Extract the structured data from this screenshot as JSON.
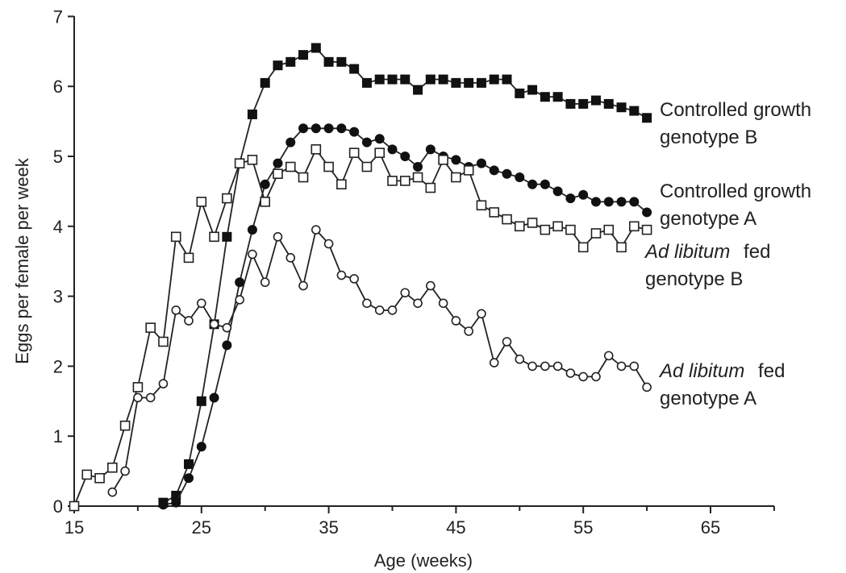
{
  "chart_data": {
    "type": "line",
    "title": "",
    "xlabel": "Age (weeks)",
    "ylabel": "Eggs per female per week",
    "xlim": [
      15,
      70
    ],
    "ylim": [
      0,
      7
    ],
    "xticks": [
      15,
      25,
      35,
      45,
      55,
      65
    ],
    "yticks": [
      0,
      1,
      2,
      3,
      4,
      5,
      6,
      7
    ],
    "grid": false,
    "legend": "none",
    "series": [
      {
        "name": "Controlled growth genotype B",
        "marker": "filled-square",
        "x": [
          22,
          23,
          24,
          25,
          26,
          27,
          28,
          29,
          30,
          31,
          32,
          33,
          34,
          35,
          36,
          37,
          38,
          39,
          40,
          41,
          42,
          43,
          44,
          45,
          46,
          47,
          48,
          49,
          50,
          51,
          52,
          53,
          54,
          55,
          56,
          57,
          58,
          59,
          60
        ],
        "y": [
          0.05,
          0.15,
          0.6,
          1.5,
          2.6,
          3.85,
          4.9,
          5.6,
          6.05,
          6.3,
          6.35,
          6.45,
          6.55,
          6.35,
          6.35,
          6.25,
          6.05,
          6.1,
          6.1,
          6.1,
          5.95,
          6.1,
          6.1,
          6.05,
          6.05,
          6.05,
          6.1,
          6.1,
          5.9,
          5.95,
          5.85,
          5.85,
          5.75,
          5.75,
          5.8,
          5.75,
          5.7,
          5.65,
          5.55
        ]
      },
      {
        "name": "Controlled growth genotype A",
        "marker": "filled-circle",
        "x": [
          22,
          23,
          24,
          25,
          26,
          27,
          28,
          29,
          30,
          31,
          32,
          33,
          34,
          35,
          36,
          37,
          38,
          39,
          40,
          41,
          42,
          43,
          44,
          45,
          46,
          47,
          48,
          49,
          50,
          51,
          52,
          53,
          54,
          55,
          56,
          57,
          58,
          59,
          60
        ],
        "y": [
          0.02,
          0.05,
          0.4,
          0.85,
          1.55,
          2.3,
          3.2,
          3.95,
          4.6,
          4.9,
          5.2,
          5.4,
          5.4,
          5.4,
          5.4,
          5.35,
          5.2,
          5.25,
          5.1,
          5.0,
          4.85,
          5.1,
          5.0,
          4.95,
          4.85,
          4.9,
          4.8,
          4.75,
          4.7,
          4.6,
          4.6,
          4.5,
          4.4,
          4.45,
          4.35,
          4.35,
          4.35,
          4.35,
          4.2
        ]
      },
      {
        "name": "Ad libitum fed genotype B",
        "marker": "open-square",
        "x": [
          15,
          16,
          17,
          18,
          19,
          20,
          21,
          22,
          23,
          24,
          25,
          26,
          27,
          28,
          29,
          30,
          31,
          32,
          33,
          34,
          35,
          36,
          37,
          38,
          39,
          40,
          41,
          42,
          43,
          44,
          45,
          46,
          47,
          48,
          49,
          50,
          51,
          52,
          53,
          54,
          55,
          56,
          57,
          58,
          59,
          60
        ],
        "y": [
          0.0,
          0.45,
          0.4,
          0.55,
          1.15,
          1.7,
          2.55,
          2.35,
          3.85,
          3.55,
          4.35,
          3.85,
          4.4,
          4.9,
          4.95,
          4.35,
          4.75,
          4.85,
          4.7,
          5.1,
          4.85,
          4.6,
          5.05,
          4.85,
          5.05,
          4.65,
          4.65,
          4.7,
          4.55,
          4.95,
          4.7,
          4.8,
          4.3,
          4.2,
          4.1,
          4.0,
          4.05,
          3.95,
          4.0,
          3.95,
          3.7,
          3.9,
          3.95,
          3.7,
          4.0,
          3.95
        ]
      },
      {
        "name": "Ad libitum fed genotype A",
        "marker": "open-circle",
        "x": [
          18,
          19,
          20,
          21,
          22,
          23,
          24,
          25,
          26,
          27,
          28,
          29,
          30,
          31,
          32,
          33,
          34,
          35,
          36,
          37,
          38,
          39,
          40,
          41,
          42,
          43,
          44,
          45,
          46,
          47,
          48,
          49,
          50,
          51,
          52,
          53,
          54,
          55,
          56,
          57,
          58,
          59,
          60
        ],
        "y": [
          0.2,
          0.5,
          1.55,
          1.55,
          1.75,
          2.8,
          2.65,
          2.9,
          2.6,
          2.55,
          2.95,
          3.6,
          3.2,
          3.85,
          3.55,
          3.15,
          3.95,
          3.75,
          3.3,
          3.25,
          2.9,
          2.8,
          2.8,
          3.05,
          2.9,
          3.15,
          2.9,
          2.65,
          2.5,
          2.75,
          2.05,
          2.35,
          2.1,
          2.0,
          2.0,
          2.0,
          1.9,
          1.85,
          1.85,
          2.15,
          2.0,
          2.0,
          1.7
        ]
      }
    ],
    "annotations": {
      "cg_b_line1": "Controlled growth",
      "cg_b_line2": "genotype B",
      "cg_a_line1": "Controlled growth",
      "cg_a_line2": "genotype A",
      "al_b_ital": "Ad libitum",
      "al_b_fed": "fed",
      "al_b_line2": "genotype B",
      "al_a_ital": "Ad libitum",
      "al_a_fed": "fed",
      "al_a_line2": "genotype A"
    }
  }
}
